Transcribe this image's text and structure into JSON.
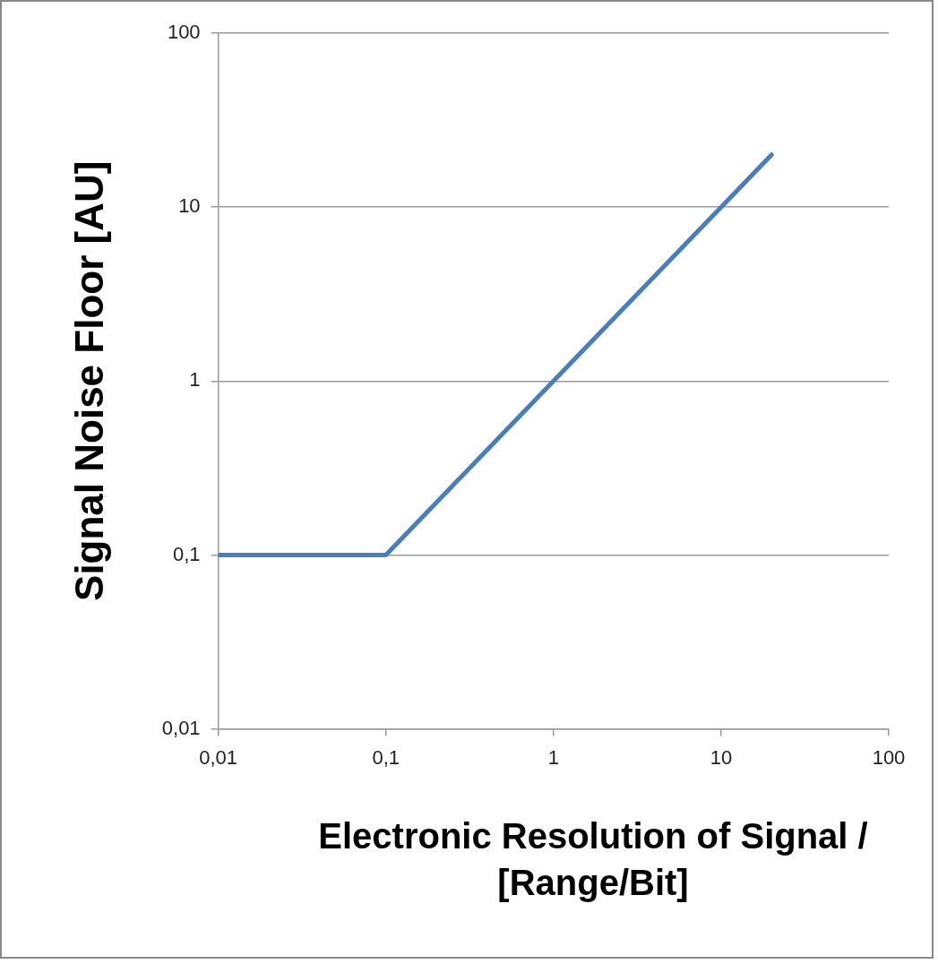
{
  "chart_data": {
    "type": "line",
    "xlabel": "Electronic Resolution of Signal / [Range/Bit]",
    "ylabel": "Signal Noise Floor [AU]",
    "x": [
      0.01,
      0.1,
      1,
      10,
      20
    ],
    "series": [
      {
        "color": "#4a7ebb",
        "values": [
          0.1,
          0.1,
          1,
          10,
          20
        ]
      }
    ],
    "xlim": [
      0.01,
      100
    ],
    "ylim": [
      0.01,
      100
    ],
    "xticks": [
      {
        "value": 0.01,
        "label": "0,01"
      },
      {
        "value": 0.1,
        "label": "0,1"
      },
      1,
      10,
      100
    ],
    "yticks": [
      {
        "value": 0.01,
        "label": "0,01"
      },
      {
        "value": 0.1,
        "label": "0,1"
      },
      1,
      10,
      100
    ],
    "log": "xy",
    "grid": "y",
    "marker": "none",
    "line_style": "solid"
  }
}
